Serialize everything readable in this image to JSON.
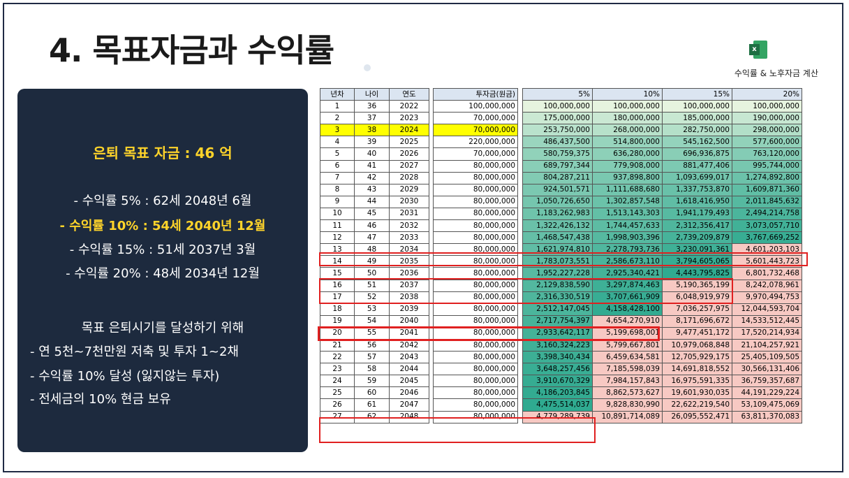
{
  "title": "4. 목표자금과 수익률",
  "excel": {
    "icon": "excel-icon",
    "label": "수익률 & 노후자금 계산"
  },
  "panel": {
    "goal": "은퇴 목표 자금 : 46 억",
    "lines": [
      "- 수익률 5% : 62세 2048년 6월",
      "- 수익률 10% : 54세 2040년 12월",
      "- 수익률 15% : 51세 2037년 3월",
      "- 수익률 20% : 48세 2034년 12월"
    ],
    "plan_title": "목표 은퇴시기를 달성하기 위해",
    "plan": [
      "- 연 5천~7천만원 저축 및 투자 1~2채",
      "- 수익률 10% 달성 (잃지않는 투자)",
      "- 전세금의 10% 현금 보유"
    ]
  },
  "table": {
    "headers": [
      "년차",
      "나이",
      "연도",
      "투자금(원금)",
      "5%",
      "10%",
      "15%",
      "20%"
    ],
    "rows": [
      [
        "1",
        "36",
        "2022",
        "100,000,000",
        "100,000,000",
        "100,000,000",
        "100,000,000",
        "100,000,000"
      ],
      [
        "2",
        "37",
        "2023",
        "70,000,000",
        "175,000,000",
        "180,000,000",
        "185,000,000",
        "190,000,000"
      ],
      [
        "3",
        "38",
        "2024",
        "70,000,000",
        "253,750,000",
        "268,000,000",
        "282,750,000",
        "298,000,000"
      ],
      [
        "4",
        "39",
        "2025",
        "220,000,000",
        "486,437,500",
        "514,800,000",
        "545,162,500",
        "577,600,000"
      ],
      [
        "5",
        "40",
        "2026",
        "70,000,000",
        "580,759,375",
        "636,280,000",
        "696,936,875",
        "763,120,000"
      ],
      [
        "6",
        "41",
        "2027",
        "80,000,000",
        "689,797,344",
        "779,908,000",
        "881,477,406",
        "995,744,000"
      ],
      [
        "7",
        "42",
        "2028",
        "80,000,000",
        "804,287,211",
        "937,898,800",
        "1,093,699,017",
        "1,274,892,800"
      ],
      [
        "8",
        "43",
        "2029",
        "80,000,000",
        "924,501,571",
        "1,111,688,680",
        "1,337,753,870",
        "1,609,871,360"
      ],
      [
        "9",
        "44",
        "2030",
        "80,000,000",
        "1,050,726,650",
        "1,302,857,548",
        "1,618,416,950",
        "2,011,845,632"
      ],
      [
        "10",
        "45",
        "2031",
        "80,000,000",
        "1,183,262,983",
        "1,513,143,303",
        "1,941,179,493",
        "2,494,214,758"
      ],
      [
        "11",
        "46",
        "2032",
        "80,000,000",
        "1,322,426,132",
        "1,744,457,633",
        "2,312,356,417",
        "3,073,057,710"
      ],
      [
        "12",
        "47",
        "2033",
        "80,000,000",
        "1,468,547,438",
        "1,998,903,396",
        "2,739,209,879",
        "3,767,669,252"
      ],
      [
        "13",
        "48",
        "2034",
        "80,000,000",
        "1,621,974,810",
        "2,278,793,736",
        "3,230,091,361",
        "4,601,203,103"
      ],
      [
        "14",
        "49",
        "2035",
        "80,000,000",
        "1,783,073,551",
        "2,586,673,110",
        "3,794,605,065",
        "5,601,443,723"
      ],
      [
        "15",
        "50",
        "2036",
        "80,000,000",
        "1,952,227,228",
        "2,925,340,421",
        "4,443,795,825",
        "6,801,732,468"
      ],
      [
        "16",
        "51",
        "2037",
        "80,000,000",
        "2,129,838,590",
        "3,297,874,463",
        "5,190,365,199",
        "8,242,078,961"
      ],
      [
        "17",
        "52",
        "2038",
        "80,000,000",
        "2,316,330,519",
        "3,707,661,909",
        "6,048,919,979",
        "9,970,494,753"
      ],
      [
        "18",
        "53",
        "2039",
        "80,000,000",
        "2,512,147,045",
        "4,158,428,100",
        "7,036,257,975",
        "12,044,593,704"
      ],
      [
        "19",
        "54",
        "2040",
        "80,000,000",
        "2,717,754,397",
        "4,654,270,910",
        "8,171,696,672",
        "14,533,512,445"
      ],
      [
        "20",
        "55",
        "2041",
        "80,000,000",
        "2,933,642,117",
        "5,199,698,001",
        "9,477,451,172",
        "17,520,214,934"
      ],
      [
        "21",
        "56",
        "2042",
        "80,000,000",
        "3,160,324,223",
        "5,799,667,801",
        "10,979,068,848",
        "21,104,257,921"
      ],
      [
        "22",
        "57",
        "2043",
        "80,000,000",
        "3,398,340,434",
        "6,459,634,581",
        "12,705,929,175",
        "25,405,109,505"
      ],
      [
        "23",
        "58",
        "2044",
        "80,000,000",
        "3,648,257,456",
        "7,185,598,039",
        "14,691,818,552",
        "30,566,131,406"
      ],
      [
        "24",
        "59",
        "2045",
        "80,000,000",
        "3,910,670,329",
        "7,984,157,843",
        "16,975,591,335",
        "36,759,357,687"
      ],
      [
        "25",
        "60",
        "2046",
        "80,000,000",
        "4,186,203,845",
        "8,862,573,627",
        "19,601,930,035",
        "44,191,229,224"
      ],
      [
        "26",
        "61",
        "2047",
        "80,000,000",
        "4,475,514,037",
        "9,828,830,990",
        "22,622,219,540",
        "53,109,475,069"
      ],
      [
        "27",
        "62",
        "2048",
        "80,000,000",
        "4,779,289,739",
        "10,891,714,089",
        "26,095,552,471",
        "63,811,370,083"
      ]
    ],
    "colors": {
      "highlight": "#ffff00",
      "below_goal_low": "#e6f4df",
      "below_goal_high": "#2ea98f",
      "above_goal": "#f7c9c3",
      "box": "#e02020"
    }
  }
}
